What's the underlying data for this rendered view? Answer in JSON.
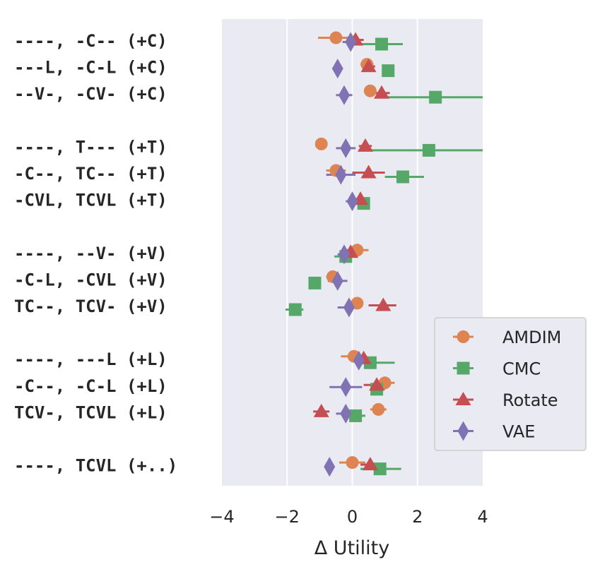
{
  "chart_data": {
    "type": "scatter",
    "orientation": "horizontal",
    "xlabel": "Δ Utility",
    "xlim": [
      -4,
      4
    ],
    "xticks": [
      -4,
      -2,
      0,
      2,
      4
    ],
    "xtick_labels": [
      "−4",
      "−2",
      "0",
      "2",
      "4"
    ],
    "grid": "vertical",
    "legend_position": "lower-right",
    "categories": [
      "----, -C-- (+C)",
      "---L, -C-L (+C)",
      "--V-, -CV- (+C)",
      "",
      "----, T--- (+T)",
      "-C--, TC-- (+T)",
      "-CVL, TCVL (+T)",
      "",
      "----, --V- (+V)",
      "-C-L, -CVL (+V)",
      "TC--, TCV- (+V)",
      "",
      "----, ---L (+L)",
      "-C--, -C-L (+L)",
      "TCV-, TCVL (+L)",
      "",
      "----, TCVL (+..)"
    ],
    "series": [
      {
        "name": "AMDIM",
        "color": "#dd8452",
        "marker": "circle",
        "offset": -0.12,
        "values": [
          -0.5,
          0.45,
          0.55,
          null,
          -0.95,
          -0.5,
          null,
          null,
          0.15,
          -0.6,
          0.15,
          null,
          0.05,
          1.0,
          0.8,
          null,
          0.0
        ],
        "errors": [
          [
            -1.05,
            -0.05
          ],
          [
            0.25,
            0.65
          ],
          null,
          null,
          null,
          [
            -0.8,
            -0.2
          ],
          null,
          null,
          [
            -0.25,
            0.5
          ],
          [
            -0.8,
            -0.4
          ],
          null,
          null,
          [
            -0.35,
            0.45
          ],
          [
            0.7,
            1.3
          ],
          [
            0.55,
            1.05
          ],
          null,
          [
            -0.4,
            0.4
          ]
        ]
      },
      {
        "name": "CMC",
        "color": "#55a868",
        "marker": "square",
        "offset": 0.12,
        "values": [
          0.9,
          1.1,
          2.55,
          null,
          2.35,
          1.55,
          0.35,
          null,
          -0.2,
          -1.15,
          -1.75,
          null,
          0.55,
          0.75,
          0.1,
          null,
          0.85
        ],
        "errors": [
          [
            0.3,
            1.55
          ],
          null,
          [
            1.1,
            4.0
          ],
          null,
          [
            0.55,
            4.0
          ],
          [
            1.0,
            2.2
          ],
          [
            0.2,
            0.5
          ],
          null,
          [
            -0.55,
            0.1
          ],
          null,
          [
            -2.05,
            -1.5
          ],
          null,
          [
            0.1,
            1.3
          ],
          [
            0.55,
            1.0
          ],
          [
            -0.15,
            0.4
          ],
          null,
          [
            0.25,
            1.5
          ]
        ]
      },
      {
        "name": "Rotate",
        "color": "#c44e52",
        "marker": "triangle",
        "offset": -0.04,
        "values": [
          0.1,
          0.5,
          0.9,
          null,
          0.4,
          0.5,
          0.25,
          null,
          -0.05,
          null,
          0.95,
          null,
          0.35,
          0.75,
          -0.95,
          null,
          0.55
        ],
        "errors": [
          [
            -0.1,
            0.35
          ],
          [
            0.3,
            0.7
          ],
          [
            0.65,
            1.15
          ],
          null,
          [
            0.2,
            0.6
          ],
          [
            0.0,
            1.0
          ],
          [
            0.1,
            0.45
          ],
          null,
          [
            -0.3,
            0.2
          ],
          null,
          [
            0.5,
            1.35
          ],
          null,
          [
            0.1,
            0.6
          ],
          [
            0.35,
            1.1
          ],
          [
            -1.2,
            -0.7
          ],
          null,
          [
            0.25,
            0.85
          ]
        ]
      },
      {
        "name": "VAE",
        "color": "#8172b3",
        "marker": "diamond",
        "offset": 0.04,
        "values": [
          -0.05,
          -0.45,
          -0.25,
          null,
          -0.2,
          -0.35,
          0.0,
          null,
          -0.25,
          -0.45,
          -0.1,
          null,
          0.2,
          -0.2,
          -0.2,
          null,
          -0.7
        ],
        "errors": [
          [
            -0.3,
            0.2
          ],
          null,
          [
            -0.5,
            0.0
          ],
          null,
          [
            -0.5,
            0.1
          ],
          [
            -0.8,
            0.1
          ],
          [
            -0.2,
            0.2
          ],
          null,
          [
            -0.45,
            -0.05
          ],
          [
            -0.75,
            -0.15
          ],
          [
            -0.45,
            0.25
          ],
          null,
          [
            0.0,
            0.4
          ],
          [
            -0.7,
            0.3
          ],
          [
            -0.5,
            0.1
          ],
          null,
          null
        ]
      }
    ]
  },
  "legend": {
    "items": [
      {
        "label": "AMDIM",
        "color": "#dd8452",
        "marker": "circle"
      },
      {
        "label": "CMC",
        "color": "#55a868",
        "marker": "square"
      },
      {
        "label": "Rotate",
        "color": "#c44e52",
        "marker": "triangle"
      },
      {
        "label": "VAE",
        "color": "#8172b3",
        "marker": "diamond"
      }
    ]
  }
}
